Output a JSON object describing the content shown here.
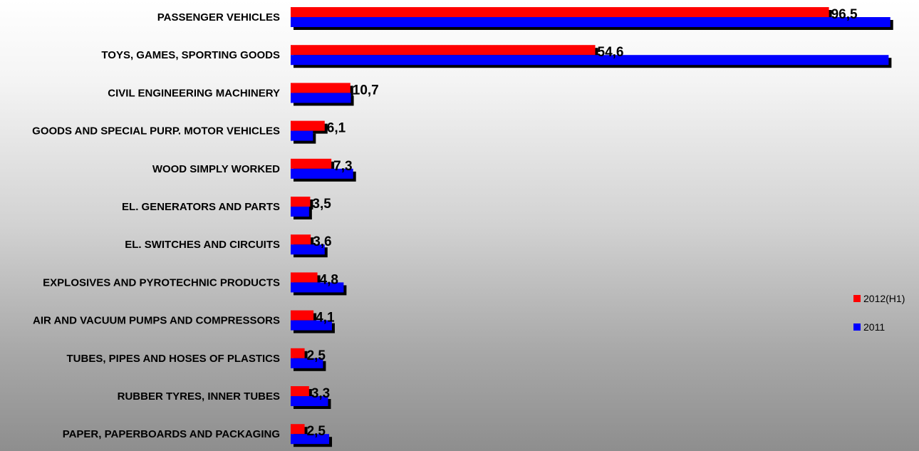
{
  "colors": {
    "series_2012": "#ff0000",
    "series_2011": "#0000ff",
    "shadow": "#000000"
  },
  "chart_data": {
    "type": "bar",
    "orientation": "horizontal",
    "categories": [
      "PASSENGER VEHICLES",
      "TOYS, GAMES, SPORTING GOODS",
      "CIVIL ENGINEERING MACHINERY",
      "GOODS AND SPECIAL PURP. MOTOR VEHICLES",
      "WOOD SIMPLY WORKED",
      "EL. GENERATORS AND PARTS",
      "EL. SWITCHES AND CIRCUITS",
      "EXPLOSIVES AND PYROTECHNIC PRODUCTS",
      "AIR AND VACUUM PUMPS AND COMPRESSORS",
      "TUBES, PIPES AND HOSES OF PLASTICS",
      "RUBBER TYRES, INNER TUBES",
      "PAPER, PAPERBOARDS AND PACKAGING"
    ],
    "series": [
      {
        "name": "2012(H1)",
        "values": [
          96.5,
          54.6,
          10.7,
          6.1,
          7.3,
          3.5,
          3.6,
          4.8,
          4.1,
          2.5,
          3.3,
          2.5
        ],
        "labels": [
          "96,5",
          "54,6",
          "10,7",
          "6,1",
          "7,3",
          "3,5",
          "3,6",
          "4,8",
          "4,1",
          "2,5",
          "3,3",
          "2,5"
        ]
      },
      {
        "name": "2011",
        "values": [
          107.5,
          107.2,
          10.8,
          4.0,
          11.2,
          3.3,
          6.1,
          9.5,
          7.4,
          5.8,
          6.7,
          6.9
        ]
      }
    ],
    "xlim": [
      0,
      110
    ],
    "grid": false,
    "legend_position": "right"
  }
}
